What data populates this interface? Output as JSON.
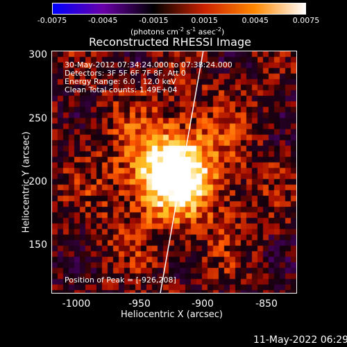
{
  "colorbar": {
    "ticks": [
      "-0.0075",
      "-0.0045",
      "-0.0015",
      "0.0015",
      "0.0045",
      "0.0075"
    ],
    "units_prefix": "(photons cm",
    "units_exp1": "-2",
    "units_mid": " s",
    "units_exp2": "-1",
    "units_mid2": " asec",
    "units_exp3": "-2",
    "units_suffix": ")",
    "colors": [
      "#0000ff",
      "#6a00a8",
      "#000000",
      "#cc2200",
      "#ff8800",
      "#ffffff"
    ]
  },
  "title": "Reconstructed RHESSI Image",
  "info": {
    "time_range": "30-May-2012 07:34:24.000 to 07:38:24.000",
    "detectors": "Detectors: 3F 5F 6F 7F 8F, Att 0",
    "energy": "Energy Range: 6.0 - 12.0 keV",
    "clean": "Clean     Total counts: 1.49E+04",
    "peak": "Position of Peak = [-926,208]"
  },
  "axes": {
    "xlabel": "Heliocentric X (arcsec)",
    "ylabel": "Heliocentric Y (arcsec)",
    "xticks": [
      "-1000",
      "-950",
      "-900",
      "-850"
    ],
    "yticks": [
      "300",
      "250",
      "200",
      "150"
    ]
  },
  "datestamp": "11-May-2022 06:29",
  "chart_data": {
    "type": "heatmap",
    "title": "Reconstructed RHESSI Image",
    "xlabel": "Heliocentric X (arcsec)",
    "ylabel": "Heliocentric Y (arcsec)",
    "xlim": [
      -1020,
      -826
    ],
    "ylim": [
      110,
      302
    ],
    "colorbar_range": [
      -0.0075,
      0.0075
    ],
    "peak": {
      "x": -926,
      "y": 208
    },
    "limb_line": [
      [
        -934,
        110
      ],
      [
        -900,
        302
      ]
    ]
  }
}
